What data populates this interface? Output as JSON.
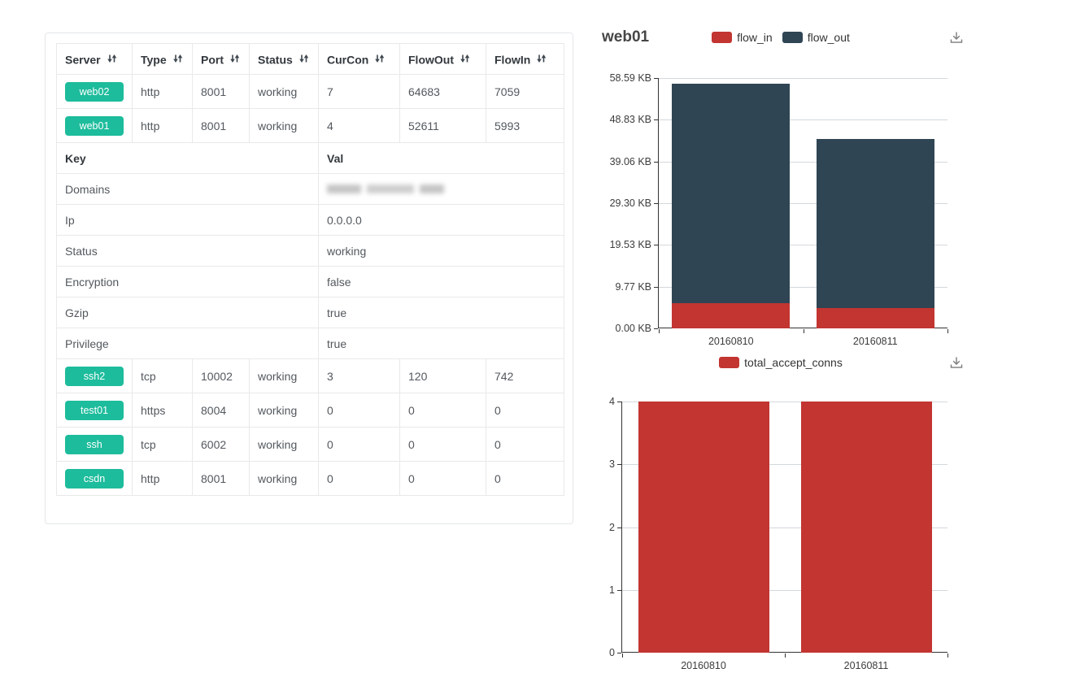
{
  "table": {
    "columns": [
      "Server",
      "Type",
      "Port",
      "Status",
      "CurCon",
      "FlowOut",
      "FlowIn"
    ],
    "servers_top": [
      {
        "name": "web02",
        "type": "http",
        "port": "8001",
        "status": "working",
        "curcon": "7",
        "flowout": "64683",
        "flowin": "7059"
      },
      {
        "name": "web01",
        "type": "http",
        "port": "8001",
        "status": "working",
        "curcon": "4",
        "flowout": "52611",
        "flowin": "5993"
      }
    ],
    "detail": {
      "key_header": "Key",
      "val_header": "Val",
      "rows": [
        {
          "key": "Domains",
          "val": "",
          "redacted": true
        },
        {
          "key": "Ip",
          "val": "0.0.0.0"
        },
        {
          "key": "Status",
          "val": "working"
        },
        {
          "key": "Encryption",
          "val": "false"
        },
        {
          "key": "Gzip",
          "val": "true"
        },
        {
          "key": "Privilege",
          "val": "true"
        }
      ]
    },
    "servers_bottom": [
      {
        "name": "ssh2",
        "type": "tcp",
        "port": "10002",
        "status": "working",
        "curcon": "3",
        "flowout": "120",
        "flowin": "742"
      },
      {
        "name": "test01",
        "type": "https",
        "port": "8004",
        "status": "working",
        "curcon": "0",
        "flowout": "0",
        "flowin": "0"
      },
      {
        "name": "ssh",
        "type": "tcp",
        "port": "6002",
        "status": "working",
        "curcon": "0",
        "flowout": "0",
        "flowin": "0"
      },
      {
        "name": "csdn",
        "type": "http",
        "port": "8001",
        "status": "working",
        "curcon": "0",
        "flowout": "0",
        "flowin": "0"
      }
    ]
  },
  "chart_data": [
    {
      "type": "bar",
      "stacked": true,
      "title": "web01",
      "categories": [
        "20160810",
        "20160811"
      ],
      "series": [
        {
          "name": "flow_in",
          "color": "#c23531",
          "values": [
            5.85,
            4.7
          ]
        },
        {
          "name": "flow_out",
          "color": "#2f4554",
          "values": [
            51.38,
            39.7
          ]
        }
      ],
      "unit": "KB",
      "ylim": [
        0,
        58.59
      ],
      "y_ticks": [
        "0.00 KB",
        "9.77 KB",
        "19.53 KB",
        "29.30 KB",
        "39.06 KB",
        "48.83 KB",
        "58.59 KB"
      ],
      "legend_position": "top-center",
      "grid": true
    },
    {
      "type": "bar",
      "stacked": false,
      "title": "",
      "categories": [
        "20160810",
        "20160811"
      ],
      "series": [
        {
          "name": "total_accept_conns",
          "color": "#c23531",
          "values": [
            4,
            4
          ]
        }
      ],
      "unit": "",
      "ylim": [
        0,
        4
      ],
      "y_ticks": [
        "0",
        "1",
        "2",
        "3",
        "4"
      ],
      "legend_position": "top-center",
      "grid": true
    }
  ],
  "colors": {
    "server_button_green": "#1dbc9c",
    "bar_red": "#c23531",
    "bar_dark": "#2f4554",
    "axis": "#333333",
    "grid_line": "#d4d8dc",
    "table_border": "#e9e9e9"
  },
  "icons": {
    "sort": "sort-arrows",
    "download": "save-as-image"
  }
}
